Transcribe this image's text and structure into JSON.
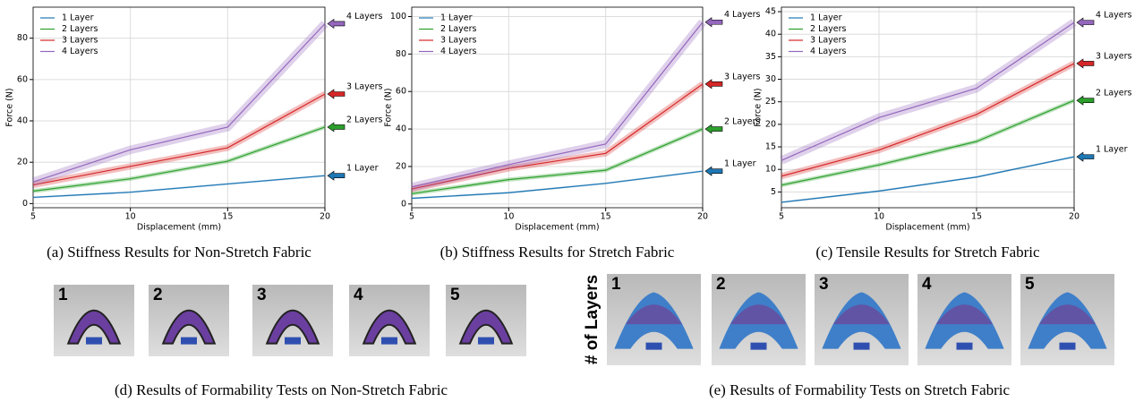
{
  "chart_data": [
    {
      "type": "line",
      "caption": "(a) Stiffness Results for Non-Stretch Fabric",
      "xlabel": "Displacement (mm)",
      "ylabel": "Force (N)",
      "x": [
        5,
        10,
        15,
        20
      ],
      "xlim": [
        5,
        20
      ],
      "xticks": [
        5,
        10,
        15,
        20
      ],
      "ylim": [
        -2,
        95
      ],
      "yticks": [
        0,
        20,
        40,
        60,
        80
      ],
      "grid": true,
      "legend": "upper-left",
      "series": [
        {
          "name": "1 Layer",
          "color": "#1f77b4",
          "values": [
            3,
            5.5,
            9.5,
            13.5
          ]
        },
        {
          "name": "2 Layers",
          "color": "#2ca02c",
          "values": [
            6,
            12,
            20.5,
            37
          ]
        },
        {
          "name": "3 Layers",
          "color": "#d62728",
          "values": [
            9,
            18,
            27,
            53
          ]
        },
        {
          "name": "4 Layers",
          "color": "#9467bd",
          "values": [
            10.5,
            26,
            37,
            87
          ]
        }
      ]
    },
    {
      "type": "line",
      "caption": "(b) Stiffness Results for Stretch Fabric",
      "xlabel": "Displacement (mm)",
      "ylabel": "Force (N)",
      "x": [
        5,
        10,
        15,
        20
      ],
      "xlim": [
        5,
        20
      ],
      "xticks": [
        5,
        10,
        15,
        20
      ],
      "ylim": [
        -2,
        105
      ],
      "yticks": [
        0,
        20,
        40,
        60,
        80,
        100
      ],
      "grid": true,
      "legend": "upper-left",
      "series": [
        {
          "name": "1 Layer",
          "color": "#1f77b4",
          "values": [
            3,
            6,
            11,
            17.5
          ]
        },
        {
          "name": "2 Layers",
          "color": "#2ca02c",
          "values": [
            5.5,
            13,
            18,
            40
          ]
        },
        {
          "name": "3 Layers",
          "color": "#d62728",
          "values": [
            8,
            19,
            27,
            64
          ]
        },
        {
          "name": "4 Layers",
          "color": "#9467bd",
          "values": [
            9,
            21,
            32,
            97
          ]
        }
      ]
    },
    {
      "type": "line",
      "caption": "(c) Tensile Results for Stretch Fabric",
      "xlabel": "Displacement (mm)",
      "ylabel": "Force (N)",
      "x": [
        5,
        10,
        15,
        20
      ],
      "xlim": [
        5,
        20
      ],
      "xticks": [
        5,
        10,
        15,
        20
      ],
      "ylim": [
        1.5,
        46
      ],
      "yticks": [
        5,
        10,
        15,
        20,
        25,
        30,
        35,
        40,
        45
      ],
      "grid": true,
      "legend": "upper-left",
      "series": [
        {
          "name": "1 Layer",
          "color": "#1f77b4",
          "values": [
            2.7,
            5.2,
            8.3,
            12.8
          ]
        },
        {
          "name": "2 Layers",
          "color": "#2ca02c",
          "values": [
            6.5,
            11,
            16.2,
            25.3
          ]
        },
        {
          "name": "3 Layers",
          "color": "#d62728",
          "values": [
            8.5,
            14.3,
            22.2,
            33.5
          ]
        },
        {
          "name": "4 Layers",
          "color": "#9467bd",
          "values": [
            12,
            21.5,
            28,
            42.6
          ]
        }
      ]
    }
  ],
  "photo_rows": [
    {
      "caption": "(d) Results of Formability Tests on Non-Stretch Fabric",
      "labels": [
        "1",
        "2",
        "3",
        "4",
        "5"
      ]
    },
    {
      "caption": "(e) Results of Formability Tests on Stretch Fabric",
      "axis_label": "# of Layers",
      "labels": [
        "1",
        "2",
        "3",
        "4",
        "5"
      ]
    }
  ]
}
